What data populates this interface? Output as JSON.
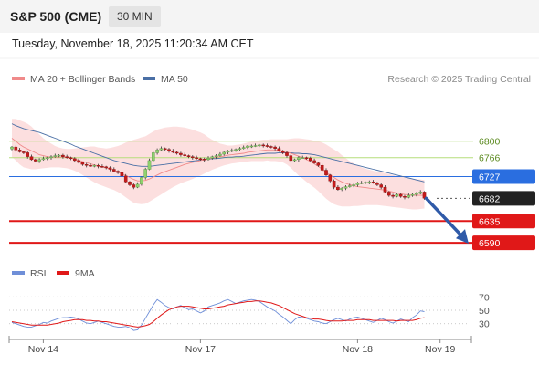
{
  "header": {
    "instrument": "S&P 500 (CME)",
    "timeframe": "30 MIN"
  },
  "timestamp": "Tuesday, November 18, 2025 11:20:34 AM CET",
  "copyright": "Research © 2025 Trading Central",
  "colors": {
    "bull": "#8fd26f",
    "bear": "#c51a1a",
    "bollinger": "#fbd9d9",
    "ma20": "#f08a8a",
    "ma50": "#4a6fa5",
    "support": "#e01818",
    "resistance_green": "#b6dd7c",
    "resistance_blue": "#2a6ee0",
    "current": "#222222",
    "rsi": "#6f8fd8",
    "rsi_ma": "#e01818"
  },
  "chart_data": [
    {
      "type": "candlestick",
      "title": "S&P 500 (CME) 30 MIN",
      "legend": [
        {
          "name": "MA 20 + Bollinger Bands",
          "color": "#f08a8a"
        },
        {
          "name": "MA 50",
          "color": "#4a6fa5"
        }
      ],
      "x_ticks": [
        {
          "label": "Nov 14",
          "index": 8
        },
        {
          "label": "Nov 17",
          "index": 48
        },
        {
          "label": "Nov 18",
          "index": 88
        },
        {
          "label": "Nov 19",
          "index": 109
        }
      ],
      "ylim": [
        6562,
        6888
      ],
      "close": [
        6788,
        6782,
        6778,
        6776,
        6768,
        6762,
        6759,
        6762,
        6764,
        6766,
        6768,
        6770,
        6771,
        6768,
        6766,
        6764,
        6760,
        6756,
        6752,
        6750,
        6749,
        6750,
        6748,
        6747,
        6745,
        6742,
        6738,
        6735,
        6728,
        6716,
        6710,
        6705,
        6711,
        6725,
        6742,
        6760,
        6776,
        6782,
        6785,
        6783,
        6780,
        6777,
        6775,
        6772,
        6770,
        6768,
        6766,
        6764,
        6763,
        6762,
        6765,
        6768,
        6770,
        6773,
        6777,
        6779,
        6781,
        6783,
        6785,
        6787,
        6790,
        6790,
        6791,
        6792,
        6791,
        6789,
        6788,
        6785,
        6780,
        6776,
        6770,
        6760,
        6762,
        6766,
        6766,
        6765,
        6760,
        6755,
        6750,
        6740,
        6730,
        6718,
        6705,
        6700,
        6703,
        6706,
        6708,
        6710,
        6713,
        6714,
        6715,
        6716,
        6714,
        6710,
        6705,
        6695,
        6688,
        6686,
        6690,
        6686,
        6684,
        6688,
        6690,
        6692,
        6695,
        6682
      ],
      "ma20": [
        6806,
        6800,
        6793,
        6788,
        6784,
        6780,
        6776,
        6772,
        6770,
        6768,
        6767,
        6767,
        6767,
        6767,
        6766,
        6765,
        6763,
        6761,
        6758,
        6756,
        6753,
        6751,
        6749,
        6747,
        6745,
        6743,
        6740,
        6737,
        6733,
        6729,
        6725,
        6721,
        6718,
        6718,
        6719,
        6722,
        6726,
        6730,
        6734,
        6737,
        6740,
        6743,
        6746,
        6749,
        6752,
        6754,
        6756,
        6758,
        6760,
        6762,
        6764,
        6765,
        6767,
        6768,
        6769,
        6771,
        6772,
        6773,
        6774,
        6775,
        6777,
        6778,
        6779,
        6780,
        6781,
        6782,
        6782,
        6782,
        6781,
        6780,
        6778,
        6775,
        6772,
        6769,
        6766,
        6762,
        6758,
        6753,
        6748,
        6742,
        6736,
        6730,
        6725,
        6720,
        6716,
        6713,
        6710,
        6708,
        6706,
        6705,
        6704,
        6703,
        6702,
        6701,
        6700,
        6699,
        6697,
        6695,
        6693,
        6691,
        6690,
        6689,
        6688,
        6688,
        6688,
        6688
      ],
      "bb_upper": [
        6846,
        6846,
        6843,
        6840,
        6836,
        6830,
        6822,
        6814,
        6806,
        6800,
        6795,
        6790,
        6787,
        6785,
        6784,
        6784,
        6785,
        6786,
        6787,
        6788,
        6789,
        6789,
        6787,
        6786,
        6785,
        6786,
        6788,
        6790,
        6793,
        6797,
        6800,
        6803,
        6805,
        6808,
        6810,
        6815,
        6820,
        6824,
        6826,
        6828,
        6829,
        6830,
        6830,
        6829,
        6828,
        6826,
        6824,
        6821,
        6818,
        6814,
        6808,
        6803,
        6799,
        6795,
        6793,
        6791,
        6791,
        6792,
        6793,
        6795,
        6797,
        6799,
        6801,
        6802,
        6803,
        6803,
        6804,
        6804,
        6804,
        6804,
        6804,
        6805,
        6806,
        6806,
        6805,
        6804,
        6803,
        6801,
        6800,
        6797,
        6793,
        6788,
        6783,
        6778,
        6771,
        6765,
        6759,
        6754,
        6750,
        6746,
        6743,
        6741,
        6739,
        6737,
        6736,
        6734,
        6732,
        6730,
        6728,
        6727,
        6725,
        6724,
        6723,
        6722,
        6721,
        6720
      ],
      "bb_lower": [
        6768,
        6760,
        6752,
        6746,
        6744,
        6742,
        6742,
        6743,
        6744,
        6745,
        6746,
        6746,
        6746,
        6745,
        6744,
        6742,
        6739,
        6735,
        6730,
        6725,
        6720,
        6715,
        6711,
        6708,
        6705,
        6702,
        6699,
        6695,
        6690,
        6684,
        6678,
        6673,
        6671,
        6670,
        6671,
        6675,
        6680,
        6685,
        6690,
        6695,
        6700,
        6705,
        6709,
        6713,
        6716,
        6719,
        6722,
        6726,
        6729,
        6733,
        6737,
        6741,
        6744,
        6747,
        6750,
        6752,
        6754,
        6755,
        6756,
        6757,
        6758,
        6759,
        6759,
        6759,
        6759,
        6760,
        6759,
        6759,
        6758,
        6756,
        6752,
        6745,
        6737,
        6729,
        6723,
        6716,
        6710,
        6704,
        6697,
        6689,
        6681,
        6675,
        6670,
        6667,
        6665,
        6665,
        6665,
        6666,
        6666,
        6667,
        6668,
        6668,
        6668,
        6668,
        6667,
        6666,
        6665,
        6664,
        6663,
        6662,
        6661,
        6660,
        6659,
        6659,
        6660,
        6661
      ],
      "ma50": [
        6836,
        6832,
        6829,
        6826,
        6824,
        6822,
        6820,
        6818,
        6815,
        6812,
        6809,
        6806,
        6803,
        6800,
        6797,
        6794,
        6790,
        6787,
        6784,
        6781,
        6778,
        6775,
        6772,
        6769,
        6766,
        6763,
        6760,
        6758,
        6756,
        6754,
        6752,
        6750,
        6749,
        6748,
        6748,
        6748,
        6749,
        6750,
        6751,
        6752,
        6753,
        6754,
        6755,
        6756,
        6757,
        6758,
        6759,
        6760,
        6761,
        6762,
        6763,
        6764,
        6764,
        6765,
        6766,
        6767,
        6767,
        6768,
        6768,
        6769,
        6770,
        6771,
        6772,
        6773,
        6774,
        6775,
        6775,
        6775,
        6776,
        6776,
        6776,
        6776,
        6775,
        6775,
        6774,
        6774,
        6773,
        6772,
        6770,
        6768,
        6766,
        6764,
        6762,
        6760,
        6758,
        6756,
        6754,
        6752,
        6750,
        6748,
        6746,
        6744,
        6742,
        6740,
        6738,
        6736,
        6734,
        6732,
        6730,
        6728,
        6726,
        6724,
        6722,
        6720,
        6718,
        6716
      ],
      "levels": [
        {
          "value": 6800,
          "label": "6800",
          "kind": "resistance"
        },
        {
          "value": 6766,
          "label": "6766",
          "kind": "resistance"
        },
        {
          "value": 6727,
          "label": "6727",
          "kind": "pivot"
        },
        {
          "value": 6682,
          "label": "6682",
          "kind": "current"
        },
        {
          "value": 6635,
          "label": "6635",
          "kind": "support"
        },
        {
          "value": 6590,
          "label": "6590",
          "kind": "support"
        }
      ],
      "forecast": {
        "from": 6682,
        "to": 6590,
        "direction": "down"
      }
    },
    {
      "type": "line",
      "legend": [
        {
          "name": "RSI",
          "color": "#6f8fd8"
        },
        {
          "name": "9MA",
          "color": "#e01818"
        }
      ],
      "ylim": [
        12,
        88
      ],
      "y_ticks": [
        {
          "label": "70",
          "value": 70
        },
        {
          "label": "50",
          "value": 50
        },
        {
          "label": "30",
          "value": 30
        }
      ],
      "rsi": [
        32,
        30,
        28,
        26,
        25,
        25,
        27,
        29,
        32,
        31,
        34,
        36,
        38,
        39,
        39,
        40,
        39,
        37,
        34,
        31,
        30,
        32,
        34,
        32,
        30,
        28,
        26,
        25,
        25,
        26,
        24,
        20,
        21,
        28,
        38,
        48,
        58,
        66,
        62,
        57,
        54,
        52,
        55,
        57,
        54,
        51,
        52,
        49,
        46,
        49,
        55,
        57,
        59,
        61,
        64,
        66,
        63,
        60,
        62,
        64,
        65,
        66,
        65,
        63,
        59,
        55,
        52,
        49,
        44,
        40,
        35,
        30,
        36,
        40,
        39,
        38,
        36,
        34,
        33,
        31,
        30,
        33,
        36,
        38,
        36,
        34,
        37,
        39,
        40,
        38,
        36,
        34,
        32,
        35,
        38,
        36,
        33,
        31,
        34,
        37,
        35,
        33,
        39,
        43,
        49,
        48
      ],
      "rsi_ma": [
        33,
        32,
        31,
        30,
        29,
        28,
        28,
        28,
        28,
        28,
        29,
        30,
        31,
        33,
        34,
        35,
        36,
        36,
        36,
        35,
        35,
        34,
        34,
        33,
        33,
        32,
        31,
        30,
        29,
        28,
        27,
        26,
        25,
        26,
        27,
        29,
        33,
        38,
        43,
        47,
        51,
        53,
        55,
        56,
        56,
        56,
        55,
        54,
        53,
        52,
        52,
        53,
        54,
        55,
        56,
        58,
        59,
        60,
        61,
        62,
        63,
        63,
        64,
        64,
        63,
        62,
        61,
        59,
        57,
        54,
        51,
        48,
        45,
        43,
        41,
        39,
        38,
        37,
        37,
        36,
        35,
        34,
        34,
        34,
        34,
        35,
        35,
        35,
        36,
        36,
        36,
        36,
        35,
        35,
        35,
        35,
        35,
        35,
        34,
        35,
        35,
        35,
        35,
        36,
        38,
        39
      ]
    }
  ]
}
